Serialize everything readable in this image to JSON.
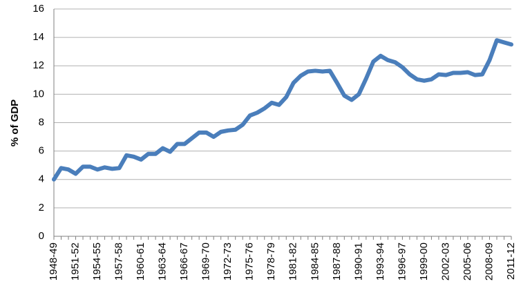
{
  "chart_data": {
    "type": "line",
    "title": "",
    "xlabel": "",
    "ylabel": "% of GDP",
    "ylim": [
      0,
      16
    ],
    "yticks": [
      0,
      2,
      4,
      6,
      8,
      10,
      12,
      14,
      16
    ],
    "grid": "horizontal",
    "legend": "none",
    "line_color": "#4a7ebb",
    "grid_color": "#b0b0b0",
    "categories": [
      "1948-49",
      "1949-50",
      "1950-51",
      "1951-52",
      "1952-53",
      "1953-54",
      "1954-55",
      "1955-56",
      "1956-57",
      "1957-58",
      "1958-59",
      "1959-60",
      "1960-61",
      "1961-62",
      "1962-63",
      "1963-64",
      "1964-65",
      "1965-66",
      "1966-67",
      "1967-68",
      "1968-69",
      "1969-70",
      "1970-71",
      "1971-72",
      "1972-73",
      "1973-74",
      "1974-75",
      "1975-76",
      "1976-77",
      "1977-78",
      "1978-79",
      "1979-80",
      "1980-81",
      "1981-82",
      "1982-83",
      "1983-84",
      "1984-85",
      "1985-86",
      "1986-87",
      "1987-88",
      "1988-89",
      "1989-90",
      "1990-91",
      "1991-92",
      "1992-93",
      "1993-94",
      "1994-95",
      "1995-96",
      "1996-97",
      "1997-98",
      "1998-99",
      "1999-00",
      "2000-01",
      "2001-02",
      "2002-03",
      "2003-04",
      "2004-05",
      "2005-06",
      "2006-07",
      "2007-08",
      "2008-09",
      "2009-10",
      "2010-11",
      "2011-12"
    ],
    "tick_labels": [
      "1948-49",
      "1951-52",
      "1954-55",
      "1957-58",
      "1960-61",
      "1963-64",
      "1966-67",
      "1969-70",
      "1972-73",
      "1975-76",
      "1978-79",
      "1981-82",
      "1984-85",
      "1987-88",
      "1990-91",
      "1993-94",
      "1996-97",
      "1999-00",
      "2002-03",
      "2005-06",
      "2008-09",
      "2011-12"
    ],
    "values": [
      4.0,
      4.8,
      4.7,
      4.4,
      4.9,
      4.9,
      4.7,
      4.85,
      4.75,
      4.8,
      5.7,
      5.6,
      5.4,
      5.8,
      5.8,
      6.2,
      5.95,
      6.5,
      6.5,
      6.9,
      7.3,
      7.3,
      7.0,
      7.35,
      7.45,
      7.5,
      7.85,
      8.5,
      8.7,
      9.0,
      9.4,
      9.25,
      9.8,
      10.8,
      11.3,
      11.6,
      11.65,
      11.6,
      11.65,
      10.8,
      9.9,
      9.6,
      10.0,
      11.1,
      12.3,
      12.7,
      12.4,
      12.25,
      11.9,
      11.4,
      11.05,
      10.95,
      11.05,
      11.4,
      11.35,
      11.5,
      11.5,
      11.55,
      11.35,
      11.4,
      12.4,
      13.8,
      13.65,
      13.5
    ]
  }
}
